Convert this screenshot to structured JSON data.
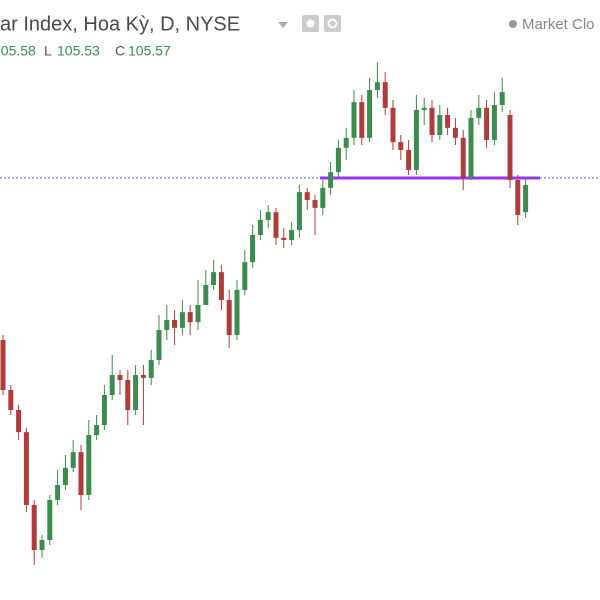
{
  "chart_data": {
    "type": "candlestick",
    "title": "ar Index, Hoa Kỳ, D, NYSE",
    "status": "Market Clo",
    "ohlc_labels": [
      "L",
      "C"
    ],
    "up_color": "#3d8b4e",
    "down_color": "#b03b3b",
    "ylim": [
      93.75,
      110.55
    ],
    "open": [
      101.03,
      99.63,
      99.07,
      98.45,
      96.41,
      95.15,
      95.43,
      96.55,
      96.97,
      97.45,
      97.89,
      96.69,
      98.37,
      98.65,
      99.49,
      100.05,
      99.91,
      99.07,
      100.05,
      99.97,
      100.47,
      101.31,
      101.59,
      101.37,
      101.81,
      101.53,
      102.01,
      102.57,
      102.93,
      102.15,
      101.17,
      102.43,
      103.21,
      103.97,
      104.39,
      104.61,
      103.89,
      103.83,
      104.11,
      105.17,
      104.95,
      104.73,
      105.29,
      105.73,
      106.41,
      106.69,
      107.69,
      106.69,
      108.03,
      108.25,
      107.53,
      106.57,
      106.35,
      105.79,
      107.47,
      107.53,
      106.77,
      107.33,
      106.97,
      106.69,
      105.57,
      107.25,
      107.53,
      106.63,
      107.61,
      107.33,
      105.51,
      104.61,
      105.55
    ],
    "high": [
      101.17,
      99.77,
      99.21,
      98.57,
      96.55,
      95.57,
      96.69,
      97.39,
      97.81,
      98.23,
      98.09,
      98.79,
      98.93,
      99.77,
      100.61,
      100.19,
      100.19,
      100.33,
      100.33,
      100.75,
      101.73,
      102.01,
      101.87,
      102.15,
      102.01,
      102.71,
      102.99,
      103.27,
      103.13,
      102.43,
      102.71,
      103.55,
      104.25,
      104.67,
      104.81,
      104.73,
      104.17,
      104.33,
      105.37,
      105.29,
      105.09,
      105.51,
      106.01,
      106.63,
      106.97,
      108.03,
      107.89,
      108.37,
      108.81,
      108.53,
      107.75,
      106.77,
      106.63,
      107.89,
      107.81,
      107.75,
      107.61,
      107.53,
      107.25,
      106.91,
      107.47,
      107.89,
      107.75,
      107.97,
      108.37,
      107.47,
      105.65,
      105.57,
      105.58
    ],
    "low": [
      99.49,
      98.93,
      98.23,
      96.21,
      94.73,
      94.93,
      95.29,
      96.41,
      96.83,
      97.33,
      96.27,
      96.55,
      98.23,
      98.51,
      99.35,
      99.49,
      98.65,
      98.93,
      98.65,
      99.77,
      100.33,
      101.03,
      100.89,
      101.17,
      101.17,
      101.31,
      102.15,
      102.43,
      101.87,
      100.81,
      101.03,
      102.29,
      103.05,
      103.83,
      104.17,
      103.69,
      103.61,
      103.69,
      103.89,
      104.67,
      103.97,
      104.53,
      105.09,
      105.57,
      106.07,
      106.49,
      106.49,
      106.57,
      107.81,
      107.33,
      106.35,
      106.07,
      105.65,
      105.65,
      107.05,
      106.57,
      106.63,
      106.77,
      106.49,
      105.23,
      105.51,
      107.05,
      106.41,
      106.49,
      107.41,
      105.29,
      104.25,
      104.45,
      105.53
    ],
    "close": [
      99.63,
      99.07,
      98.45,
      96.41,
      95.15,
      95.43,
      96.55,
      96.97,
      97.45,
      97.89,
      96.69,
      98.37,
      98.65,
      99.49,
      100.05,
      99.91,
      99.07,
      100.05,
      99.97,
      100.47,
      101.31,
      101.59,
      101.37,
      101.81,
      101.53,
      102.01,
      102.57,
      102.93,
      102.15,
      101.17,
      102.43,
      103.21,
      103.97,
      104.39,
      104.61,
      103.89,
      103.83,
      104.11,
      105.17,
      104.95,
      104.73,
      105.29,
      105.73,
      106.41,
      106.69,
      107.69,
      106.69,
      108.03,
      108.25,
      107.53,
      106.57,
      106.35,
      105.79,
      107.47,
      107.53,
      106.77,
      107.33,
      106.97,
      106.69,
      105.57,
      107.25,
      107.53,
      106.63,
      107.61,
      107.97,
      105.51,
      104.53,
      105.37,
      105.57
    ]
  }
}
